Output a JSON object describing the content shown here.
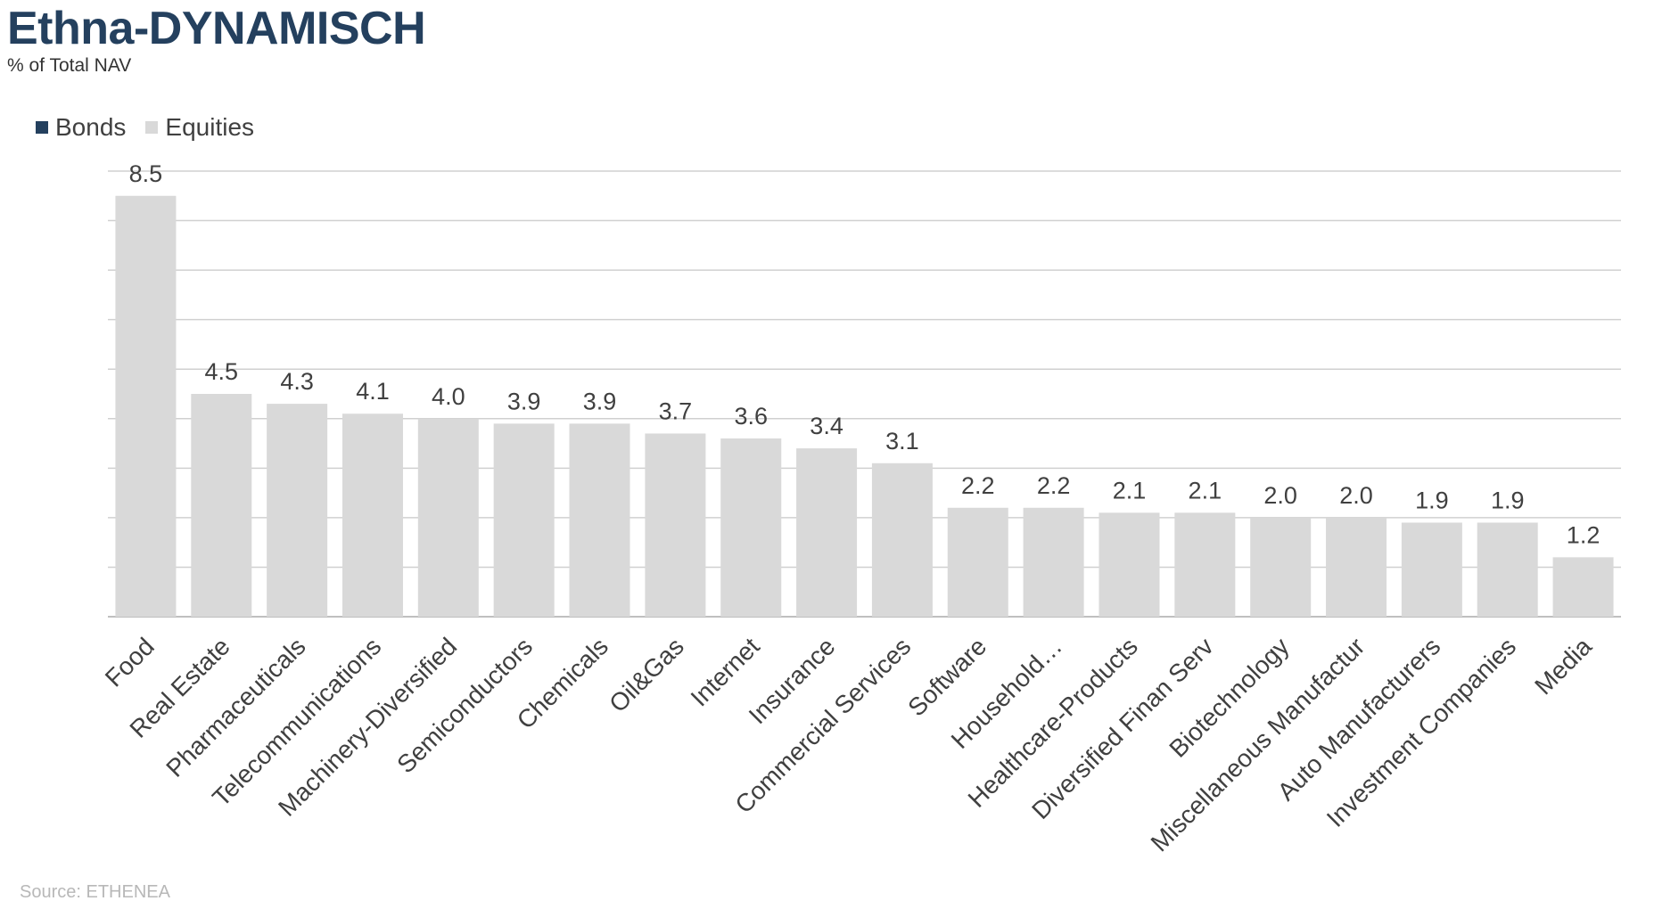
{
  "header": {
    "title": "Ethna-DYNAMISCH",
    "subtitle": "% of Total NAV"
  },
  "legend": [
    {
      "name": "Bonds",
      "color": "#24405e"
    },
    {
      "name": "Equities",
      "color": "#d9d9d9"
    }
  ],
  "source": "Source: ETHENEA",
  "colors": {
    "bonds": "#24405e",
    "equities": "#d9d9d9",
    "gridline": "#d0d0d0"
  },
  "chart_data": {
    "type": "bar",
    "title": "Ethna-DYNAMISCH",
    "subtitle": "% of Total NAV",
    "categories": [
      "Food",
      "Real Estate",
      "Pharmaceuticals",
      "Telecommunications",
      "Machinery-Diversified",
      "Semiconductors",
      "Chemicals",
      "Oil&Gas",
      "Internet",
      "Insurance",
      "Commercial Services",
      "Software",
      "Household…",
      "Healthcare-Products",
      "Diversified Finan Serv",
      "Biotechnology",
      "Miscellaneous Manufactur",
      "Auto Manufacturers",
      "Investment Companies",
      "Media"
    ],
    "series": [
      {
        "name": "Bonds",
        "values": [
          0,
          0,
          0,
          0,
          0,
          0,
          0,
          0,
          0,
          0,
          0,
          0,
          0,
          0,
          0,
          0,
          0,
          0,
          0,
          0
        ]
      },
      {
        "name": "Equities",
        "values": [
          8.5,
          4.5,
          4.3,
          4.1,
          4.0,
          3.9,
          3.9,
          3.7,
          3.6,
          3.4,
          3.1,
          2.2,
          2.2,
          2.1,
          2.1,
          2.0,
          2.0,
          1.9,
          1.9,
          1.2
        ],
        "data_labels": [
          "8.5",
          "4.5",
          "4.3",
          "4.1",
          "4.0",
          "3.9",
          "3.9",
          "3.7",
          "3.6",
          "3.4",
          "3.1",
          "2.2",
          "2.2",
          "2.1",
          "2.1",
          "2.0",
          "2.0",
          "1.9",
          "1.9",
          "1.2"
        ]
      }
    ],
    "ylim": [
      0,
      9
    ],
    "grid": true,
    "legend_position": "top-left",
    "xlabel": "",
    "ylabel": ""
  }
}
